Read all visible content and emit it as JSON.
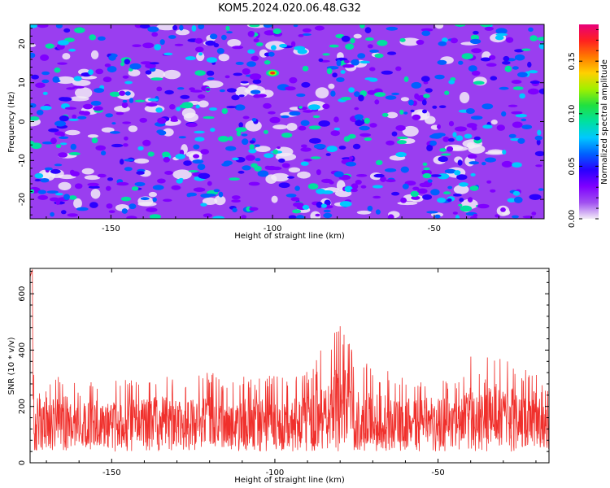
{
  "title": "KOM5.2024.020.06.48.G32",
  "chart_data": [
    {
      "type": "heatmap",
      "xlabel": "Height of straight line (km)",
      "ylabel": "Frequency (Hz)",
      "xlim": [
        -175,
        -16
      ],
      "ylim": [
        -25,
        25
      ],
      "xticks": [
        -150,
        -100,
        -50
      ],
      "xtick_labels": [
        "-150",
        "-100",
        "-50"
      ],
      "yticks": [
        20,
        10,
        0,
        -10,
        -20
      ],
      "ytick_labels": [
        "20",
        "10",
        "0",
        "-10",
        "-20"
      ],
      "colorbar": {
        "label": "Normalized spectral amplitude",
        "range": [
          0,
          0.185
        ],
        "ticks": [
          0.0,
          0.05,
          0.1,
          0.15
        ],
        "tick_labels": [
          "0.00",
          "0.05",
          "0.10",
          "0.15"
        ],
        "colormap": [
          "#f2ecf7",
          "#a050f0",
          "#7f00ff",
          "#2a00ff",
          "#0060ff",
          "#00c8ff",
          "#00e0a0",
          "#20e040",
          "#a0f000",
          "#ffd000",
          "#ff7a00",
          "#ff2020",
          "#e8007a"
        ]
      },
      "background_level": 0.025,
      "description_of_values": "mostly uniform noise around 0.02-0.06 with scattered blobs",
      "peak": {
        "x": -100,
        "y": 12.5,
        "value": 0.17
      }
    },
    {
      "type": "line",
      "xlabel": "Height of straight line (km)",
      "ylabel": "SNR (10 * v/v)",
      "xlim": [
        -175,
        -16
      ],
      "ylim": [
        0,
        690
      ],
      "xticks": [
        -150,
        -100,
        -50
      ],
      "xtick_labels": [
        "-150",
        "-100",
        "-50"
      ],
      "yticks": [
        0,
        200,
        400,
        600
      ],
      "ytick_labels": [
        "0",
        "200",
        "400",
        "600"
      ],
      "color": "#f0302c",
      "series": [
        {
          "x": [
            -175,
            -174.2,
            -173.5,
            -172,
            -170,
            -167,
            -164,
            -160,
            -155,
            -150,
            -145,
            -140,
            -135,
            -130,
            -125,
            -120,
            -115,
            -110,
            -105,
            -100,
            -95,
            -90,
            -88,
            -86,
            -84,
            -82,
            -80,
            -78,
            -76,
            -74,
            -72,
            -70,
            -65,
            -60,
            -55,
            -50,
            -45,
            -42,
            -40,
            -38,
            -35,
            -30,
            -27,
            -25,
            -22,
            -20,
            -18,
            -16
          ],
          "values": [
            660,
            690,
            150,
            360,
            250,
            330,
            320,
            270,
            300,
            290,
            310,
            300,
            320,
            290,
            300,
            330,
            280,
            310,
            300,
            320,
            300,
            330,
            340,
            420,
            360,
            480,
            490,
            460,
            400,
            350,
            360,
            330,
            330,
            310,
            310,
            320,
            300,
            320,
            410,
            330,
            430,
            360,
            380,
            300,
            350,
            340,
            280,
            290
          ]
        }
      ]
    }
  ]
}
